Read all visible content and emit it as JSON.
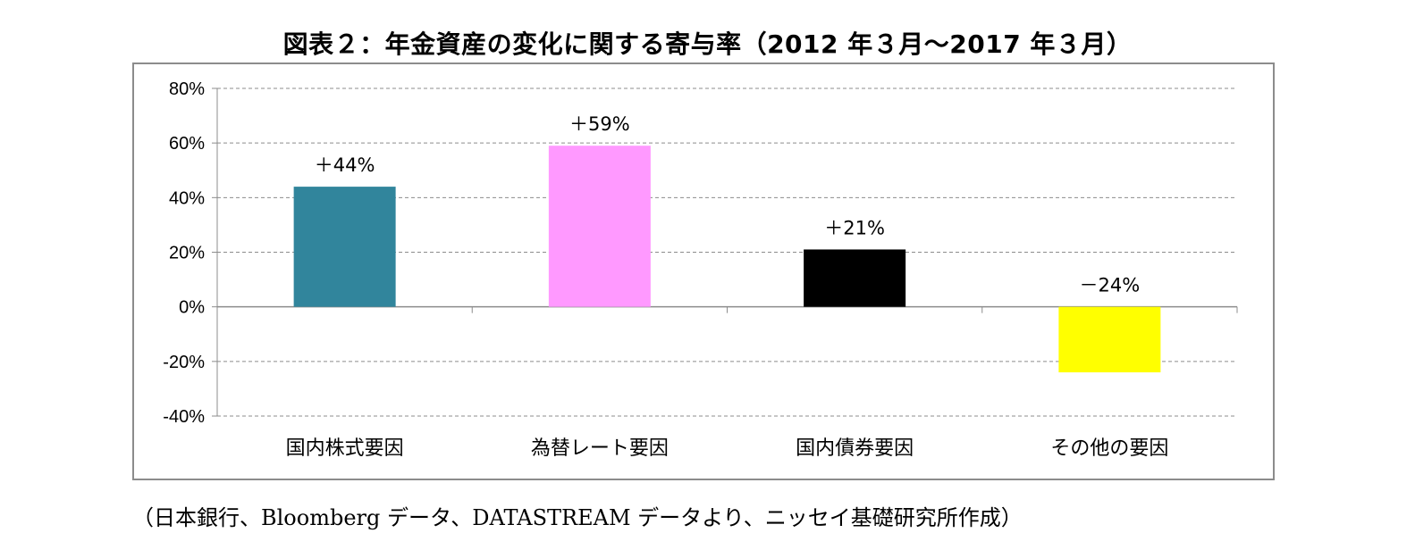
{
  "title": "図表２：年金資産の変化に関する寄与率（2012 年３月～2017 年３月）",
  "source": "（日本銀行、Bloomberg データ、DATASTREAM データより、ニッセイ基礎研究所作成）",
  "chart_data": {
    "type": "bar",
    "title": "図表２：年金資産の変化に関する寄与率（2012 年３月～2017 年３月）",
    "categories": [
      "国内株式要因",
      "為替レート要因",
      "国内債券要因",
      "その他の要因"
    ],
    "values": [
      44,
      59,
      21,
      -24
    ],
    "data_labels": [
      "＋44%",
      "＋59%",
      "＋21%",
      "－24%"
    ],
    "colors": [
      "#31859c",
      "#ff99ff",
      "#000000",
      "#ffff00"
    ],
    "ylim": [
      -40,
      80
    ],
    "yticks": [
      80,
      60,
      40,
      20,
      0,
      -20,
      -40
    ],
    "ytick_labels": [
      "80%",
      "60%",
      "40%",
      "20%",
      "0%",
      "-20%",
      "-40%"
    ],
    "grid": true,
    "legend": "none",
    "xlabel": "",
    "ylabel": ""
  }
}
